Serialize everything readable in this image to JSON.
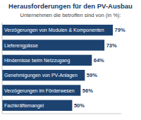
{
  "chart_data": {
    "type": "bar",
    "orientation": "horizontal",
    "title": "Herausforderungen für den PV-Ausbau",
    "subtitle": "Unternehmen die betroffen sind von (in %):",
    "categories": [
      "Verzögerungen von Modulen & Komponenten",
      "Lieferengpässe",
      "Hindernisse beim Netzzugang",
      "Genehmigungen von PV-Anlagen",
      "Verzögerungen im Förderwesen",
      "Fachkräftemangel"
    ],
    "values": [
      79,
      73,
      64,
      59,
      56,
      50
    ],
    "value_labels": [
      "79%",
      "73%",
      "64%",
      "59%",
      "56%",
      "50%"
    ],
    "color": "#1c4270",
    "xlim": [
      0,
      85
    ],
    "data_labels": true,
    "tick_labels": false,
    "grid": false
  }
}
